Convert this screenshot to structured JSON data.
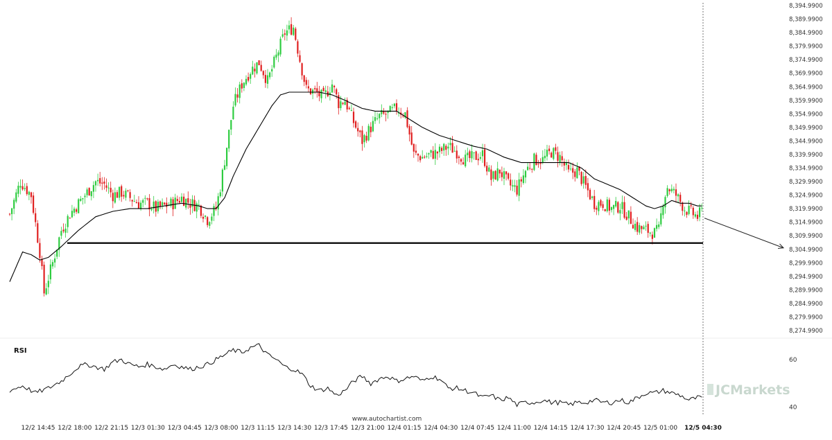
{
  "chart_data": {
    "type": "candlestick",
    "main_panel": {
      "y_range": [
        8274.99,
        8394.99
      ],
      "y_ticks": [
        "8,394.9900",
        "8,389.9900",
        "8,384.9900",
        "8,379.9900",
        "8,374.9900",
        "8,369.9900",
        "8,364.9900",
        "8,359.9900",
        "8,354.9900",
        "8,349.9900",
        "8,344.9900",
        "8,339.9900",
        "8,334.9900",
        "8,329.9900",
        "8,324.9900",
        "8,319.9900",
        "8,314.9900",
        "8,309.9900",
        "8,304.9900",
        "8,299.9900",
        "8,294.9900",
        "8,289.9900",
        "8,284.9900",
        "8,279.9900",
        "8,274.9900"
      ],
      "support_level": 8307.3,
      "projection": {
        "from_price": 8316.5,
        "to_price": 8305.5
      },
      "moving_average_color": "#000000",
      "up_color": "#2ecc40",
      "down_color": "#e02020",
      "close_keypoints": [
        [
          0,
          8318
        ],
        [
          5,
          8330
        ],
        [
          10,
          8325
        ],
        [
          14,
          8304
        ],
        [
          16,
          8289
        ],
        [
          20,
          8300
        ],
        [
          24,
          8312
        ],
        [
          28,
          8318
        ],
        [
          32,
          8322
        ],
        [
          36,
          8326
        ],
        [
          40,
          8330
        ],
        [
          44,
          8329
        ],
        [
          48,
          8325
        ],
        [
          52,
          8326
        ],
        [
          56,
          8324
        ],
        [
          60,
          8322
        ],
        [
          64,
          8322
        ],
        [
          68,
          8320
        ],
        [
          72,
          8321
        ],
        [
          76,
          8322
        ],
        [
          80,
          8324
        ],
        [
          84,
          8322
        ],
        [
          88,
          8321
        ],
        [
          92,
          8316
        ],
        [
          96,
          8320
        ],
        [
          98,
          8328
        ],
        [
          101,
          8343
        ],
        [
          104,
          8358
        ],
        [
          108,
          8366
        ],
        [
          112,
          8371
        ],
        [
          116,
          8374
        ],
        [
          120,
          8367
        ],
        [
          124,
          8376
        ],
        [
          128,
          8385
        ],
        [
          132,
          8387
        ],
        [
          135,
          8375
        ],
        [
          138,
          8364
        ],
        [
          142,
          8363
        ],
        [
          146,
          8361
        ],
        [
          150,
          8366
        ],
        [
          153,
          8359
        ],
        [
          156,
          8360
        ],
        [
          160,
          8352
        ],
        [
          164,
          8345
        ],
        [
          168,
          8350
        ],
        [
          172,
          8354
        ],
        [
          176,
          8355
        ],
        [
          180,
          8357
        ],
        [
          184,
          8355
        ],
        [
          188,
          8340
        ],
        [
          192,
          8339
        ],
        [
          196,
          8340
        ],
        [
          200,
          8341
        ],
        [
          204,
          8343
        ],
        [
          208,
          8341
        ],
        [
          212,
          8338
        ],
        [
          216,
          8339
        ],
        [
          220,
          8340
        ],
        [
          224,
          8331
        ],
        [
          228,
          8334
        ],
        [
          232,
          8329
        ],
        [
          236,
          8327
        ],
        [
          240,
          8334
        ],
        [
          244,
          8338
        ],
        [
          248,
          8338
        ],
        [
          252,
          8341
        ],
        [
          256,
          8339
        ],
        [
          260,
          8333
        ],
        [
          264,
          8334
        ],
        [
          268,
          8328
        ],
        [
          272,
          8322
        ],
        [
          276,
          8322
        ],
        [
          280,
          8320
        ],
        [
          284,
          8321
        ],
        [
          288,
          8317
        ],
        [
          292,
          8313
        ],
        [
          296,
          8312
        ],
        [
          300,
          8311
        ],
        [
          302,
          8312
        ],
        [
          304,
          8323
        ],
        [
          306,
          8328
        ],
        [
          310,
          8325
        ],
        [
          314,
          8320
        ],
        [
          318,
          8318
        ],
        [
          320,
          8317
        ],
        [
          322,
          8319
        ]
      ],
      "ma_keypoints": [
        [
          0,
          8293
        ],
        [
          6,
          8304
        ],
        [
          10,
          8303
        ],
        [
          14,
          8301
        ],
        [
          18,
          8302
        ],
        [
          24,
          8306
        ],
        [
          32,
          8312
        ],
        [
          40,
          8317
        ],
        [
          48,
          8319
        ],
        [
          56,
          8320
        ],
        [
          64,
          8320
        ],
        [
          72,
          8321
        ],
        [
          80,
          8322
        ],
        [
          88,
          8321
        ],
        [
          92,
          8320
        ],
        [
          96,
          8320
        ],
        [
          100,
          8324
        ],
        [
          104,
          8332
        ],
        [
          110,
          8342
        ],
        [
          116,
          8350
        ],
        [
          122,
          8358
        ],
        [
          126,
          8362
        ],
        [
          130,
          8363
        ],
        [
          136,
          8363
        ],
        [
          144,
          8363
        ],
        [
          150,
          8362
        ],
        [
          156,
          8360
        ],
        [
          164,
          8357
        ],
        [
          170,
          8356
        ],
        [
          176,
          8356
        ],
        [
          180,
          8356
        ],
        [
          186,
          8353
        ],
        [
          192,
          8350
        ],
        [
          200,
          8347
        ],
        [
          208,
          8345
        ],
        [
          216,
          8343
        ],
        [
          222,
          8342
        ],
        [
          230,
          8339
        ],
        [
          238,
          8337
        ],
        [
          246,
          8337
        ],
        [
          254,
          8337
        ],
        [
          260,
          8337
        ],
        [
          266,
          8335
        ],
        [
          272,
          8331
        ],
        [
          278,
          8329
        ],
        [
          284,
          8327
        ],
        [
          290,
          8324
        ],
        [
          296,
          8321
        ],
        [
          300,
          8320
        ],
        [
          304,
          8321
        ],
        [
          308,
          8323
        ],
        [
          312,
          8322
        ],
        [
          316,
          8322
        ],
        [
          320,
          8321
        ],
        [
          322,
          8321
        ]
      ]
    },
    "x_tick_labels": [
      "12/2 14:45",
      "12/2 18:00",
      "12/2 21:15",
      "12/3 01:30",
      "12/3 04:45",
      "12/3 08:00",
      "12/3 11:15",
      "12/3 14:30",
      "12/3 17:45",
      "12/3 21:00",
      "12/4 01:15",
      "12/4 04:30",
      "12/4 07:45",
      "12/4 11:00",
      "12/4 14:15",
      "12/4 17:30",
      "12/4 20:45",
      "12/5 01:00",
      "12/5 04:30"
    ],
    "x_tick_highlight_index": 18,
    "rsi_panel": {
      "label": "RSI",
      "y_range": [
        37,
        67
      ],
      "y_ticks": [
        60,
        40
      ],
      "keypoints": [
        [
          0,
          47
        ],
        [
          6,
          49
        ],
        [
          12,
          46
        ],
        [
          18,
          48
        ],
        [
          24,
          51
        ],
        [
          28,
          54
        ],
        [
          32,
          57
        ],
        [
          36,
          58
        ],
        [
          40,
          57
        ],
        [
          44,
          56
        ],
        [
          48,
          59
        ],
        [
          52,
          60
        ],
        [
          56,
          58
        ],
        [
          60,
          57
        ],
        [
          64,
          58
        ],
        [
          68,
          57
        ],
        [
          72,
          56
        ],
        [
          76,
          58
        ],
        [
          80,
          57
        ],
        [
          84,
          56
        ],
        [
          88,
          57
        ],
        [
          92,
          58
        ],
        [
          96,
          60
        ],
        [
          100,
          62
        ],
        [
          104,
          64
        ],
        [
          108,
          63
        ],
        [
          112,
          65
        ],
        [
          116,
          66
        ],
        [
          120,
          62
        ],
        [
          124,
          60
        ],
        [
          128,
          57
        ],
        [
          132,
          56
        ],
        [
          136,
          54
        ],
        [
          140,
          49
        ],
        [
          144,
          47
        ],
        [
          148,
          48
        ],
        [
          152,
          45
        ],
        [
          156,
          47
        ],
        [
          160,
          51
        ],
        [
          164,
          53
        ],
        [
          168,
          50
        ],
        [
          172,
          52
        ],
        [
          176,
          53
        ],
        [
          180,
          51
        ],
        [
          184,
          52
        ],
        [
          188,
          53
        ],
        [
          192,
          51
        ],
        [
          196,
          53
        ],
        [
          200,
          52
        ],
        [
          204,
          48
        ],
        [
          208,
          48
        ],
        [
          212,
          47
        ],
        [
          216,
          46
        ],
        [
          220,
          44
        ],
        [
          224,
          45
        ],
        [
          228,
          43
        ],
        [
          232,
          44
        ],
        [
          236,
          41
        ],
        [
          240,
          42
        ],
        [
          244,
          42
        ],
        [
          248,
          43
        ],
        [
          252,
          42
        ],
        [
          256,
          42
        ],
        [
          260,
          41
        ],
        [
          264,
          42
        ],
        [
          268,
          42
        ],
        [
          272,
          43
        ],
        [
          276,
          42
        ],
        [
          280,
          42
        ],
        [
          284,
          43
        ],
        [
          288,
          42
        ],
        [
          292,
          44
        ],
        [
          296,
          46
        ],
        [
          300,
          46
        ],
        [
          304,
          47
        ],
        [
          308,
          46
        ],
        [
          312,
          45
        ],
        [
          316,
          43
        ],
        [
          320,
          44
        ],
        [
          322,
          44
        ]
      ]
    },
    "watermark": "www.autochartist.com",
    "brand": "JCMarkets"
  }
}
